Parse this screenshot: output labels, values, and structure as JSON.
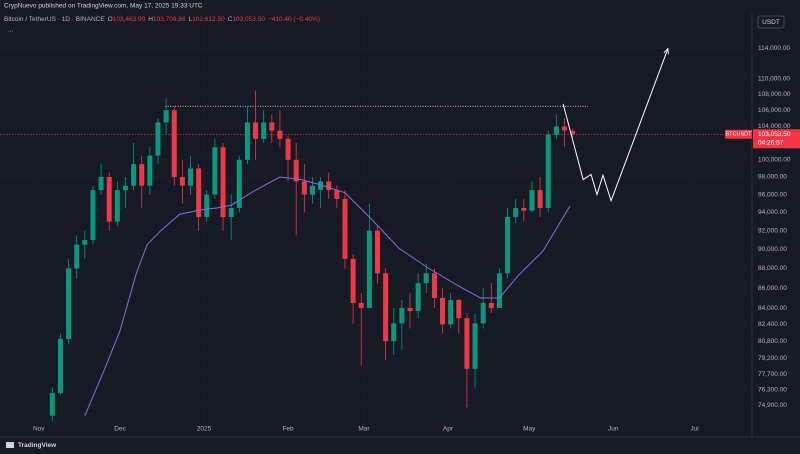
{
  "header": {
    "published": "CrypNuevo published on TradingView.com, May 17, 2025 19:33 UTC",
    "symbol": "Bitcoin / TetherUS · 1D · BINANCE",
    "ohlc": [
      {
        "key": "O",
        "value": "103,463.90"
      },
      {
        "key": "H",
        "value": "103,709.86"
      },
      {
        "key": "L",
        "value": "102,612.50"
      },
      {
        "key": "C",
        "value": "103,053.50"
      }
    ],
    "change": "−410.40 (−0.40%)",
    "more": "...",
    "currency": "USDT",
    "brand": "TradingView"
  },
  "chart_data": {
    "type": "candlestick",
    "log_scale": true,
    "grid": true,
    "up_color": "#089981",
    "down_color": "#f23645",
    "x": [
      5,
      8,
      11,
      14,
      17,
      20,
      23,
      26,
      29,
      32,
      35,
      38,
      41,
      44,
      47,
      50,
      53,
      56,
      59,
      62,
      65,
      68,
      71,
      74,
      77,
      80,
      83,
      86,
      89,
      92,
      95,
      98,
      101,
      104,
      107,
      110,
      113,
      116,
      119,
      122,
      125,
      128,
      131,
      134,
      137,
      140,
      143,
      146,
      149,
      152,
      155,
      158,
      161,
      164,
      167,
      170,
      173,
      176,
      179,
      182,
      185,
      188,
      191,
      194,
      197
    ],
    "open": [
      74000,
      76000,
      81000,
      88000,
      90500,
      91000,
      96500,
      98000,
      93000,
      96500,
      97000,
      99500,
      97000,
      100500,
      104500,
      106000,
      98000,
      97000,
      99000,
      93500,
      96000,
      101500,
      93500,
      94500,
      100000,
      104500,
      102500,
      104500,
      103500,
      102500,
      100000,
      97500,
      96000,
      96500,
      97500,
      96500,
      95500,
      89000,
      84500,
      84000,
      92000,
      87500,
      80800,
      82500,
      84000,
      83700,
      86500,
      87500,
      85000,
      82400,
      84800,
      83000,
      78200,
      82500,
      84500,
      84000,
      87500,
      93500,
      94500,
      94200,
      96500,
      94500,
      103000,
      104000,
      103463.9
    ],
    "high": [
      76500,
      81500,
      89000,
      91500,
      92000,
      97000,
      99500,
      98500,
      97500,
      98000,
      102000,
      100500,
      101500,
      105000,
      107500,
      106500,
      100000,
      100500,
      99500,
      96500,
      102500,
      102000,
      96000,
      100500,
      106500,
      108500,
      106000,
      105500,
      106000,
      102800,
      102000,
      99500,
      98000,
      98000,
      98500,
      97000,
      96500,
      89500,
      85500,
      95000,
      92500,
      88000,
      84000,
      84800,
      85500,
      87500,
      88500,
      88000,
      86000,
      85500,
      84900,
      83500,
      83500,
      86000,
      86500,
      88000,
      94500,
      95500,
      95500,
      97500,
      98000,
      103500,
      105500,
      105000,
      103709.86
    ],
    "low": [
      73500,
      75800,
      80500,
      87000,
      89000,
      90500,
      96000,
      92000,
      92500,
      94500,
      96500,
      94500,
      96000,
      99500,
      103000,
      97000,
      95000,
      96000,
      92000,
      93000,
      95500,
      92000,
      91000,
      94000,
      99500,
      100000,
      102000,
      102000,
      101500,
      97500,
      91500,
      94000,
      95000,
      94500,
      95500,
      94500,
      88000,
      82500,
      78500,
      84000,
      86500,
      79000,
      79500,
      80000,
      82000,
      83000,
      85500,
      84000,
      81500,
      82000,
      81500,
      74700,
      76500,
      82000,
      83500,
      84000,
      87000,
      92800,
      93000,
      94000,
      93500,
      94000,
      102500,
      101500,
      102612.5
    ],
    "close": [
      76000,
      81000,
      88000,
      90500,
      91000,
      96500,
      98000,
      93000,
      96500,
      97000,
      99500,
      97000,
      100500,
      104500,
      106000,
      98000,
      97000,
      99000,
      93500,
      96000,
      101500,
      93500,
      94500,
      100000,
      104500,
      102500,
      104500,
      103500,
      102500,
      100000,
      97500,
      96000,
      97000,
      97500,
      96500,
      95500,
      89000,
      84500,
      84000,
      92000,
      87500,
      80800,
      82500,
      84000,
      83700,
      86500,
      87500,
      85000,
      82400,
      84800,
      83000,
      78200,
      82500,
      84500,
      84000,
      87500,
      93500,
      94500,
      94200,
      96500,
      94500,
      103000,
      104000,
      103500,
      103053.5
    ],
    "ma": {
      "color": "#8e6ad8",
      "x": [
        17,
        24,
        30,
        36,
        40,
        45,
        52,
        60,
        66,
        71,
        80,
        89,
        97,
        104,
        113,
        122,
        133,
        144,
        155,
        163,
        170,
        177,
        186,
        196
      ],
      "values": [
        74000,
        78000,
        81800,
        87500,
        90500,
        92000,
        93800,
        94300,
        94500,
        94800,
        96500,
        98000,
        97700,
        97100,
        96200,
        93500,
        90100,
        88000,
        86200,
        85000,
        85000,
        87300,
        89800,
        94700
      ]
    },
    "resistance": {
      "value": 106500,
      "x": [
        46.6,
        202.7
      ],
      "color": "#d1d4dc"
    },
    "projection": {
      "color": "#ffffff",
      "x": [
        193.5,
        200.9,
        203.8,
        206,
        208.2,
        211.2,
        232.2
      ],
      "values": [
        106800,
        97700,
        98300,
        96000,
        98200,
        95300,
        114000
      ]
    },
    "last_price": {
      "value": 103053.5,
      "label": "103,053.50",
      "symbol": "BTCUSDT",
      "countdown": "04:26:57",
      "color": "#f23645"
    },
    "xlim": [
      -14.3,
      263.2
    ],
    "ylim": [
      73200,
      119000
    ],
    "xticks": [
      {
        "value": 0,
        "label": "Nov"
      },
      {
        "value": 30,
        "label": "Dec"
      },
      {
        "value": 61,
        "label": "2025"
      },
      {
        "value": 92,
        "label": "Feb"
      },
      {
        "value": 120,
        "label": "Mar"
      },
      {
        "value": 151,
        "label": "Apr"
      },
      {
        "value": 181,
        "label": "May"
      },
      {
        "value": 212,
        "label": "Jun"
      },
      {
        "value": 242,
        "label": "Jul"
      }
    ],
    "yticks": [
      {
        "value": 74900,
        "label": "74,900.00"
      },
      {
        "value": 76300,
        "label": "76,300.00"
      },
      {
        "value": 77700,
        "label": "77,700.00"
      },
      {
        "value": 79200,
        "label": "79,200.00"
      },
      {
        "value": 80800,
        "label": "80,800.00"
      },
      {
        "value": 82400,
        "label": "82,400.00"
      },
      {
        "value": 84000,
        "label": "84,000.00"
      },
      {
        "value": 86000,
        "label": "86,000.00"
      },
      {
        "value": 88000,
        "label": "88,000.00"
      },
      {
        "value": 90000,
        "label": "90,000.00"
      },
      {
        "value": 92000,
        "label": "92,000.00"
      },
      {
        "value": 94000,
        "label": "94,000.00"
      },
      {
        "value": 96000,
        "label": "96,000.00"
      },
      {
        "value": 98000,
        "label": "98,000.00"
      },
      {
        "value": 100000,
        "label": "100,000.00"
      },
      {
        "value": 104000,
        "label": "104,000.00"
      },
      {
        "value": 106000,
        "label": "106,000.00"
      },
      {
        "value": 108000,
        "label": "108,000.00"
      },
      {
        "value": 110000,
        "label": "110,000.00"
      },
      {
        "value": 114000,
        "label": "114,000.00"
      }
    ]
  }
}
